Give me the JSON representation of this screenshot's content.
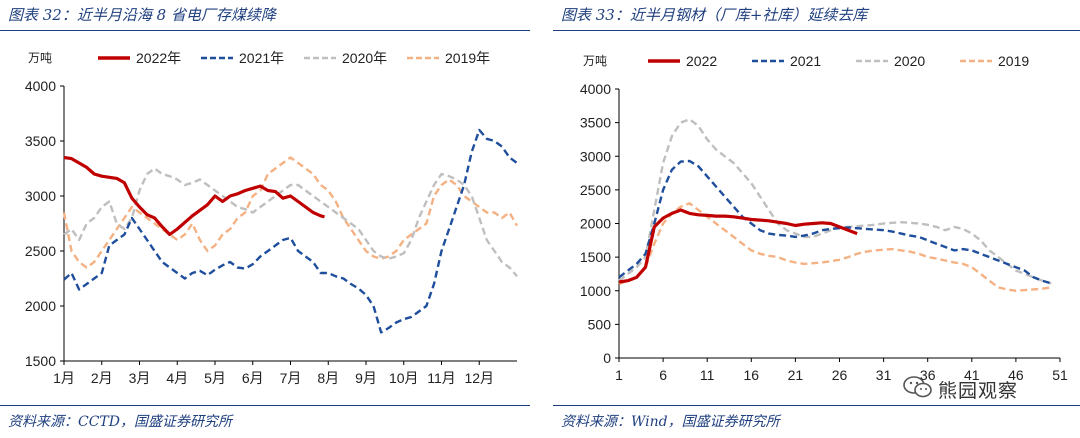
{
  "left": {
    "title": "图表 32：近半月沿海 8 省电厂存煤续降",
    "source": "资料来源：CCTD，国盛证券研究所"
  },
  "right": {
    "title": "图表 33：近半月钢材（厂库+社库）延续去库",
    "source": "资料来源：Wind，国盛证券研究所"
  },
  "watermark": {
    "text": "熊园观察",
    "icon": "wechat-icon"
  },
  "colors": {
    "2022": "#c00000",
    "2021": "#1f4e9c",
    "2020": "#bfbfbf",
    "2019": "#f4b183"
  },
  "chart_data": [
    {
      "type": "line",
      "unit": "万吨",
      "x_ticks": [
        "1月",
        "2月",
        "3月",
        "4月",
        "5月",
        "6月",
        "7月",
        "8月",
        "9月",
        "10月",
        "11月",
        "12月"
      ],
      "xlim": [
        1,
        13
      ],
      "y_ticks": [
        1500,
        2000,
        2500,
        3000,
        3500,
        4000
      ],
      "ylim": [
        1500,
        4000
      ],
      "grid": false,
      "legend": "top",
      "series": [
        {
          "name": "2022年",
          "style": "solid",
          "x": [
            1.0,
            1.2,
            1.4,
            1.6,
            1.8,
            2.0,
            2.2,
            2.4,
            2.6,
            2.8,
            3.0,
            3.2,
            3.4,
            3.6,
            3.8,
            4.0,
            4.2,
            4.4,
            4.6,
            4.8,
            5.0,
            5.2,
            5.4,
            5.6,
            5.8,
            6.0,
            6.2,
            6.4,
            6.6,
            6.8,
            7.0,
            7.2,
            7.4,
            7.6,
            7.8,
            7.9
          ],
          "y": [
            3350,
            3340,
            3300,
            3260,
            3200,
            3180,
            3170,
            3160,
            3120,
            2980,
            2900,
            2830,
            2800,
            2720,
            2650,
            2700,
            2760,
            2820,
            2870,
            2920,
            3000,
            2950,
            3000,
            3020,
            3050,
            3070,
            3090,
            3050,
            3040,
            2980,
            3000,
            2950,
            2900,
            2850,
            2820,
            2810
          ]
        },
        {
          "name": "2021年",
          "style": "dashed",
          "x": [
            1.0,
            1.2,
            1.4,
            1.6,
            1.8,
            2.0,
            2.2,
            2.4,
            2.6,
            2.8,
            3.0,
            3.2,
            3.4,
            3.6,
            3.8,
            4.0,
            4.2,
            4.4,
            4.6,
            4.8,
            5.0,
            5.2,
            5.4,
            5.6,
            5.8,
            6.0,
            6.2,
            6.4,
            6.6,
            6.8,
            7.0,
            7.2,
            7.4,
            7.6,
            7.8,
            8.0,
            8.2,
            8.4,
            8.6,
            8.8,
            9.0,
            9.2,
            9.4,
            9.6,
            9.8,
            10.0,
            10.2,
            10.4,
            10.6,
            10.8,
            11.0,
            11.2,
            11.4,
            11.6,
            11.8,
            12.0,
            12.2,
            12.4,
            12.6,
            12.8,
            13.0
          ],
          "y": [
            2240,
            2300,
            2150,
            2200,
            2250,
            2300,
            2550,
            2600,
            2650,
            2800,
            2700,
            2600,
            2500,
            2400,
            2350,
            2300,
            2250,
            2300,
            2320,
            2280,
            2330,
            2370,
            2400,
            2350,
            2340,
            2380,
            2450,
            2500,
            2550,
            2600,
            2620,
            2500,
            2450,
            2400,
            2300,
            2300,
            2270,
            2250,
            2200,
            2160,
            2100,
            2000,
            1760,
            1800,
            1850,
            1880,
            1900,
            1950,
            2000,
            2200,
            2500,
            2700,
            2900,
            3100,
            3400,
            3600,
            3520,
            3500,
            3450,
            3350,
            3300
          ]
        },
        {
          "name": "2020年",
          "style": "dashed",
          "x": [
            1.0,
            1.2,
            1.4,
            1.6,
            1.8,
            2.0,
            2.2,
            2.4,
            2.6,
            2.8,
            3.0,
            3.2,
            3.4,
            3.6,
            3.8,
            4.0,
            4.2,
            4.4,
            4.6,
            4.8,
            5.0,
            5.2,
            5.4,
            5.6,
            5.8,
            6.0,
            6.2,
            6.4,
            6.6,
            6.8,
            7.0,
            7.2,
            7.4,
            7.6,
            7.8,
            8.0,
            8.2,
            8.4,
            8.6,
            8.8,
            9.0,
            9.2,
            9.4,
            9.6,
            9.8,
            10.0,
            10.2,
            10.4,
            10.6,
            10.8,
            11.0,
            11.2,
            11.4,
            11.6,
            11.8,
            12.0,
            12.2,
            12.4,
            12.6,
            12.8,
            13.0
          ],
          "y": [
            2650,
            2700,
            2600,
            2750,
            2800,
            2900,
            2950,
            2750,
            2700,
            2800,
            3050,
            3200,
            3250,
            3200,
            3180,
            3150,
            3100,
            3120,
            3150,
            3100,
            3050,
            3000,
            2950,
            2900,
            2880,
            2850,
            2900,
            2950,
            3000,
            3050,
            3100,
            3100,
            3050,
            3000,
            2950,
            2900,
            2850,
            2800,
            2750,
            2700,
            2600,
            2500,
            2450,
            2430,
            2450,
            2480,
            2600,
            2800,
            2950,
            3100,
            3200,
            3180,
            3150,
            3100,
            3000,
            2800,
            2600,
            2500,
            2400,
            2350,
            2270
          ]
        },
        {
          "name": "2019年",
          "style": "dashed",
          "x": [
            1.0,
            1.2,
            1.4,
            1.6,
            1.8,
            2.0,
            2.2,
            2.4,
            2.6,
            2.8,
            3.0,
            3.2,
            3.4,
            3.6,
            3.8,
            4.0,
            4.2,
            4.4,
            4.6,
            4.8,
            5.0,
            5.2,
            5.4,
            5.6,
            5.8,
            6.0,
            6.2,
            6.4,
            6.6,
            6.8,
            7.0,
            7.2,
            7.4,
            7.6,
            7.8,
            8.0,
            8.2,
            8.4,
            8.6,
            8.8,
            9.0,
            9.2,
            9.4,
            9.6,
            9.8,
            10.0,
            10.2,
            10.4,
            10.6,
            10.8,
            11.0,
            11.2,
            11.4,
            11.6,
            11.8,
            12.0,
            12.2,
            12.4,
            12.6,
            12.8,
            13.0
          ],
          "y": [
            2850,
            2500,
            2400,
            2350,
            2400,
            2500,
            2600,
            2700,
            2800,
            2900,
            2850,
            2800,
            2750,
            2700,
            2650,
            2600,
            2650,
            2750,
            2600,
            2500,
            2550,
            2650,
            2700,
            2800,
            2850,
            3000,
            3050,
            3200,
            3250,
            3300,
            3350,
            3300,
            3250,
            3200,
            3100,
            3050,
            2950,
            2800,
            2700,
            2600,
            2500,
            2450,
            2430,
            2450,
            2500,
            2600,
            2650,
            2700,
            2750,
            3000,
            3100,
            3150,
            3100,
            3000,
            2950,
            2900,
            2850,
            2850,
            2800,
            2850,
            2730
          ]
        }
      ]
    },
    {
      "type": "line",
      "unit": "万吨",
      "x_ticks": [
        1,
        6,
        11,
        16,
        21,
        26,
        31,
        36,
        41,
        46,
        51
      ],
      "xlim": [
        1,
        51
      ],
      "y_ticks": [
        0,
        500,
        1000,
        1500,
        2000,
        2500,
        3000,
        3500,
        4000
      ],
      "ylim": [
        0,
        4000
      ],
      "grid": false,
      "legend": "top",
      "series": [
        {
          "name": "2022",
          "style": "solid",
          "x": [
            1,
            2,
            3,
            4,
            5,
            6,
            7,
            8,
            9,
            10,
            11,
            12,
            13,
            14,
            15,
            16,
            17,
            18,
            19,
            20,
            21,
            22,
            23,
            24,
            25,
            26,
            27,
            28
          ],
          "y": [
            1130,
            1150,
            1200,
            1350,
            1950,
            2080,
            2150,
            2200,
            2150,
            2130,
            2120,
            2110,
            2110,
            2100,
            2080,
            2060,
            2050,
            2040,
            2020,
            2000,
            1970,
            1990,
            2000,
            2010,
            2000,
            1950,
            1900,
            1850
          ]
        },
        {
          "name": "2021",
          "style": "dashed",
          "x": [
            1,
            2,
            3,
            4,
            5,
            6,
            7,
            8,
            9,
            10,
            11,
            12,
            13,
            14,
            15,
            16,
            17,
            18,
            19,
            20,
            21,
            22,
            23,
            24,
            25,
            26,
            27,
            28,
            29,
            30,
            31,
            32,
            33,
            34,
            35,
            36,
            37,
            38,
            39,
            40,
            41,
            42,
            43,
            44,
            45,
            46,
            47,
            48,
            49,
            50
          ],
          "y": [
            1200,
            1300,
            1400,
            1550,
            2000,
            2500,
            2800,
            2920,
            2930,
            2850,
            2700,
            2550,
            2400,
            2250,
            2100,
            2000,
            1900,
            1850,
            1830,
            1820,
            1800,
            1820,
            1850,
            1900,
            1920,
            1930,
            1940,
            1930,
            1920,
            1910,
            1900,
            1880,
            1850,
            1820,
            1800,
            1750,
            1700,
            1650,
            1600,
            1620,
            1600,
            1550,
            1500,
            1450,
            1400,
            1350,
            1300,
            1200,
            1150,
            1110
          ]
        },
        {
          "name": "2020",
          "style": "dashed",
          "x": [
            1,
            2,
            3,
            4,
            5,
            6,
            7,
            8,
            9,
            10,
            11,
            12,
            13,
            14,
            15,
            16,
            17,
            18,
            19,
            20,
            21,
            22,
            23,
            24,
            25,
            26,
            27,
            28,
            29,
            30,
            31,
            32,
            33,
            34,
            35,
            36,
            37,
            38,
            39,
            40,
            41,
            42,
            43,
            44,
            45,
            46,
            47,
            48,
            49,
            50
          ],
          "y": [
            1150,
            1250,
            1350,
            1500,
            2200,
            2900,
            3300,
            3500,
            3550,
            3450,
            3250,
            3100,
            3000,
            2900,
            2750,
            2600,
            2400,
            2200,
            2000,
            1900,
            1850,
            1800,
            1800,
            1850,
            1900,
            1950,
            1950,
            1960,
            1970,
            1980,
            2000,
            2010,
            2020,
            2010,
            2000,
            1980,
            1950,
            1900,
            1950,
            1920,
            1850,
            1750,
            1600,
            1500,
            1400,
            1300,
            1250,
            1200,
            1150,
            1110
          ]
        },
        {
          "name": "2019",
          "style": "dashed",
          "x": [
            1,
            2,
            3,
            4,
            5,
            6,
            7,
            8,
            9,
            10,
            11,
            12,
            13,
            14,
            15,
            16,
            17,
            18,
            19,
            20,
            21,
            22,
            23,
            24,
            25,
            26,
            27,
            28,
            29,
            30,
            31,
            32,
            33,
            34,
            35,
            36,
            37,
            38,
            39,
            40,
            41,
            42,
            43,
            44,
            45,
            46,
            47,
            48,
            49,
            50
          ],
          "y": [
            1100,
            1150,
            1200,
            1350,
            1700,
            2000,
            2150,
            2250,
            2300,
            2200,
            2100,
            2000,
            1900,
            1800,
            1700,
            1600,
            1550,
            1520,
            1500,
            1450,
            1420,
            1400,
            1410,
            1420,
            1440,
            1460,
            1500,
            1550,
            1580,
            1600,
            1610,
            1620,
            1600,
            1580,
            1550,
            1500,
            1480,
            1450,
            1420,
            1400,
            1350,
            1250,
            1150,
            1050,
            1020,
            1000,
            1010,
            1020,
            1030,
            1050
          ]
        }
      ]
    }
  ]
}
